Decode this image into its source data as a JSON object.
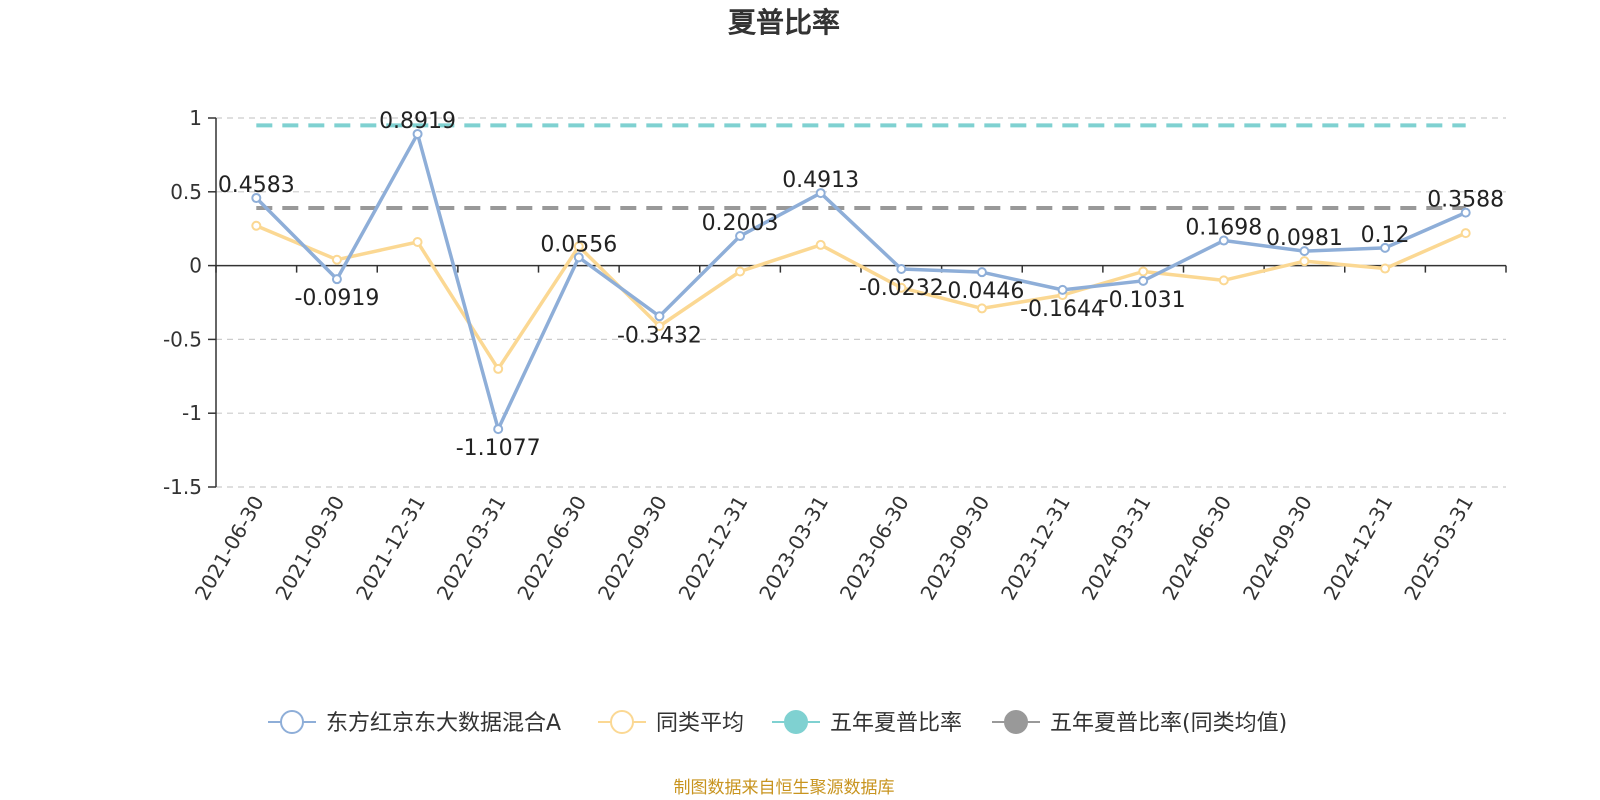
{
  "chart_data": {
    "type": "line",
    "title": "夏普比率",
    "categories": [
      "2021-06-30",
      "2021-09-30",
      "2021-12-31",
      "2022-03-31",
      "2022-06-30",
      "2022-09-30",
      "2022-12-31",
      "2023-03-31",
      "2023-06-30",
      "2023-09-30",
      "2023-12-31",
      "2024-03-31",
      "2024-06-30",
      "2024-09-30",
      "2024-12-31",
      "2025-03-31"
    ],
    "ylim": [
      -1.5,
      1
    ],
    "yticks": [
      "1",
      "0.5",
      "0",
      "-0.5",
      "-1",
      "-1.5"
    ],
    "ytick_values": [
      1,
      0.5,
      0,
      -0.5,
      -1,
      -1.5
    ],
    "grid": true,
    "legend_position": "bottom",
    "series": [
      {
        "name": "东方红京东大数据混合A",
        "color": "#8eaed8",
        "values": [
          0.4583,
          -0.0919,
          0.8919,
          -1.1077,
          0.0556,
          -0.3432,
          0.2003,
          0.4913,
          -0.0232,
          -0.0446,
          -0.1644,
          -0.1031,
          0.1698,
          0.0981,
          0.12,
          0.3588
        ],
        "labels": [
          "0.4583",
          "-0.0919",
          "0.8919",
          "-1.1077",
          "0.0556",
          "-0.3432",
          "0.2003",
          "0.4913",
          "-0.0232",
          "-0.0446",
          "-0.1644",
          "-0.1031",
          "0.1698",
          "0.0981",
          "0.12",
          "0.3588"
        ]
      },
      {
        "name": "同类平均",
        "color": "#fbd893",
        "values": [
          0.27,
          0.04,
          0.16,
          -0.7,
          0.13,
          -0.41,
          -0.04,
          0.14,
          -0.15,
          -0.29,
          -0.2,
          -0.04,
          -0.1,
          0.03,
          -0.02,
          0.22
        ]
      },
      {
        "name": "五年夏普比率",
        "color": "#7fd1d1",
        "constant": 0.95
      },
      {
        "name": "五年夏普比率(同类均值)",
        "color": "#999999",
        "constant": 0.39
      }
    ],
    "source": "制图数据来自恒生聚源数据库"
  }
}
